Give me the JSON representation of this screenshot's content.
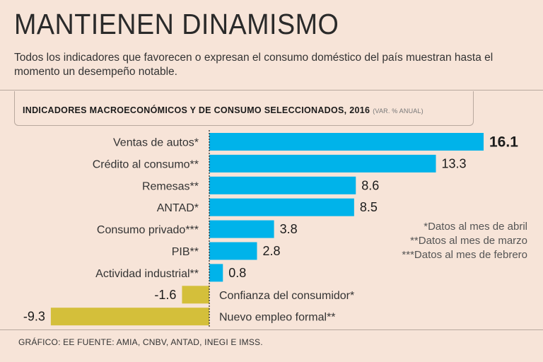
{
  "header": {
    "title": "MANTIENEN DINAMISMO",
    "subtitle": "Todos los indicadores que favorecen o expresan el consumo doméstico del país muestran hasta el momento un desempeño notable."
  },
  "chart_header": {
    "title": "INDICADORES MACROECONÓMICOS Y DE CONSUMO SELECCIONADOS, 2016",
    "unit": "(VAR. % ANUAL)"
  },
  "chart_data": {
    "type": "bar",
    "orientation": "horizontal",
    "categories": [
      "Ventas de autos*",
      "Crédito al consumo**",
      "Remesas**",
      "ANTAD*",
      "Consumo privado***",
      "PIB**",
      "Actividad industrial**",
      "Confianza del consumidor*",
      "Nuevo empleo formal**"
    ],
    "values": [
      16.1,
      13.3,
      8.6,
      8.5,
      3.8,
      2.8,
      0.8,
      -1.6,
      -9.3
    ],
    "value_labels": [
      "16.1",
      "13.3",
      "8.6",
      "8.5",
      "3.8",
      "2.8",
      "0.8",
      "-1.6",
      "-9.3"
    ],
    "highlighted_value": "16.1",
    "colors": {
      "positive": "#00b3ea",
      "negative": "#d4bf3a",
      "axis": "#222222"
    }
  },
  "notes": [
    "*Datos al mes de abril",
    "**Datos al mes de marzo",
    "***Datos al mes de febrero"
  ],
  "source": "GRÁFICO: EE  FUENTE: AMIA, CNBV, ANTAD, INEGI E IMSS."
}
